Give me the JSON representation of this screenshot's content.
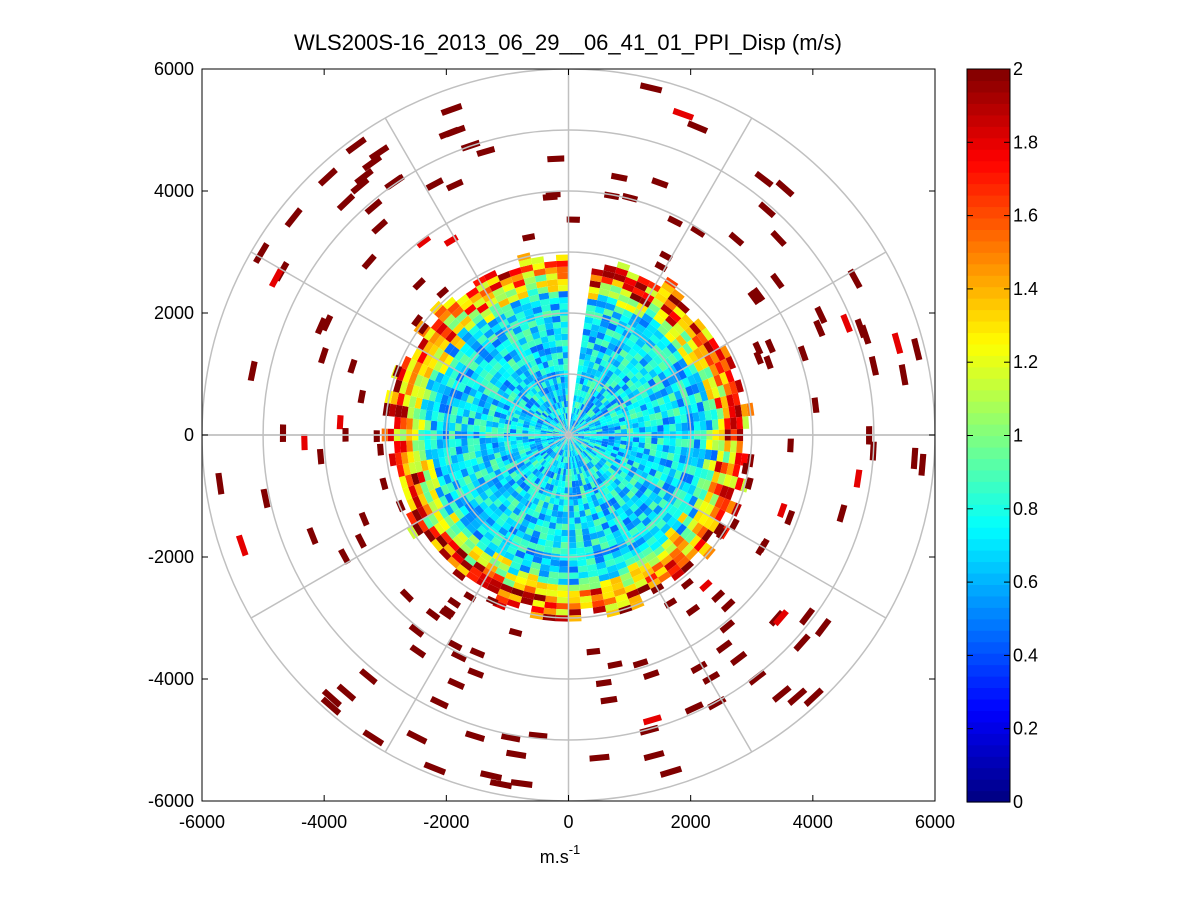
{
  "chart_data": {
    "type": "heatmap",
    "subtype": "polar-ppi",
    "title": "WLS200S-16_2013_06_29__06_41_01_PPI_Disp (m/s)",
    "xlabel": "m.s",
    "xlabel_superscript": "-1",
    "ylabel": "",
    "xlim": [
      -6000,
      6000
    ],
    "ylim": [
      -6000,
      6000
    ],
    "xticks": [
      "-6000",
      "-4000",
      "-2000",
      "0",
      "2000",
      "4000",
      "6000"
    ],
    "yticks": [
      "6000",
      "4000",
      "2000",
      "0",
      "-2000",
      "-4000",
      "-6000"
    ],
    "range_rings": [
      1000,
      2000,
      3000,
      4000,
      5000,
      6000
    ],
    "spokes_deg_step": 30,
    "colorbar": {
      "colormap": "jet",
      "clim": [
        0,
        2
      ],
      "ticks": [
        "2",
        "1.8",
        "1.6",
        "1.4",
        "1.2",
        "1",
        "0.8",
        "0.6",
        "0.4",
        "0.2",
        "0"
      ]
    },
    "dense_region": {
      "max_range": 2900,
      "typical_value": 0.7,
      "edge_value": 1.4,
      "gap_azimuth_deg": [
        0,
        8
      ]
    },
    "scattered_far_cells_value": 2,
    "grid": true
  }
}
